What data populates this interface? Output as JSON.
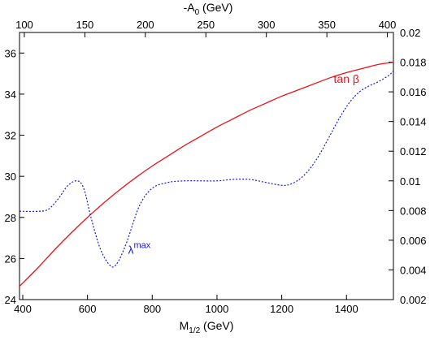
{
  "colors": {
    "tan_beta": "#e8141b",
    "lambda_max": "#1a1acd",
    "axes": "#000000",
    "background": "#ffffff"
  },
  "chart_data": {
    "type": "line",
    "grid": false,
    "xlabel": {
      "main": "M",
      "sub": "1/2",
      "unit": " (GeV)"
    },
    "x2label": {
      "main": "-A",
      "sub": "0",
      "unit": " (GeV)"
    },
    "xlim": [
      390,
      1545
    ],
    "ylim": [
      24,
      37
    ],
    "y2lim": [
      0.002,
      0.02
    ],
    "x2lim": [
      96,
      405
    ],
    "xticks": [
      400,
      600,
      800,
      1000,
      1200,
      1400
    ],
    "yticks": [
      24,
      26,
      28,
      30,
      32,
      34,
      36
    ],
    "y2ticks": [
      0.002,
      0.004,
      0.006,
      0.008,
      0.01,
      0.012,
      0.014,
      0.016,
      0.018,
      0.02
    ],
    "x2ticks": [
      100,
      150,
      200,
      250,
      300,
      350,
      400
    ],
    "series": [
      {
        "name": "tan β",
        "axis": "left",
        "style": "solid",
        "x": [
          390,
          450,
          500,
          550,
          600,
          650,
          700,
          750,
          800,
          850,
          900,
          950,
          1000,
          1050,
          1100,
          1150,
          1200,
          1250,
          1300,
          1350,
          1400,
          1450,
          1500,
          1545
        ],
        "y": [
          24.65,
          25.6,
          26.45,
          27.25,
          28.0,
          28.7,
          29.35,
          29.95,
          30.5,
          31.0,
          31.5,
          31.95,
          32.4,
          32.8,
          33.2,
          33.55,
          33.9,
          34.2,
          34.5,
          34.8,
          35.05,
          35.25,
          35.45,
          35.55
        ]
      },
      {
        "name": "λ^max",
        "axis": "right",
        "style": "dotted",
        "x": [
          390,
          450,
          480,
          510,
          540,
          570,
          590,
          610,
          640,
          670,
          690,
          720,
          760,
          800,
          850,
          900,
          950,
          1000,
          1050,
          1100,
          1150,
          1200,
          1230,
          1260,
          1290,
          1320,
          1350,
          1380,
          1410,
          1440,
          1470,
          1500,
          1530,
          1545
        ],
        "y": [
          0.00795,
          0.00795,
          0.0081,
          0.0088,
          0.0097,
          0.01,
          0.0094,
          0.0076,
          0.0054,
          0.0043,
          0.0044,
          0.0058,
          0.0083,
          0.0095,
          0.0099,
          0.01,
          0.01,
          0.01,
          0.0101,
          0.0101,
          0.0099,
          0.0097,
          0.0098,
          0.0102,
          0.0109,
          0.0119,
          0.0131,
          0.0143,
          0.0153,
          0.016,
          0.0164,
          0.0167,
          0.0171,
          0.0174
        ]
      }
    ],
    "annotations": [
      {
        "main": "tan β",
        "sup": "",
        "series": 0,
        "x": 1400,
        "y": 34.55
      },
      {
        "main": "λ",
        "sup": "max",
        "series": 1,
        "x": 760,
        "y": 0.0051
      }
    ]
  }
}
